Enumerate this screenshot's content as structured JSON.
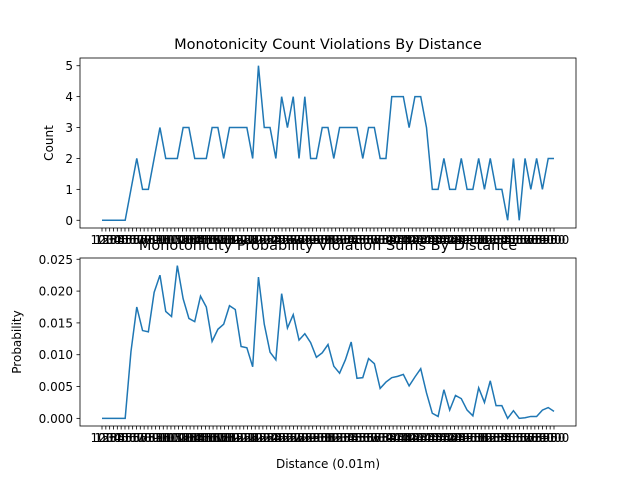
{
  "figure": {
    "xlabel": "Distance (0.01m)"
  },
  "chart_data": [
    {
      "type": "line",
      "title": "Monotonicity Count Violations By Distance",
      "xlabel": "",
      "ylabel": "Count",
      "ylim": [
        -0.25,
        5.25
      ],
      "yticks": [
        0,
        1,
        2,
        3,
        4,
        5
      ],
      "grid": false,
      "line_color": "#1f77b4",
      "x_tick_labels": [
        "100",
        "150",
        "200",
        "250",
        "300",
        "350",
        "400",
        "450",
        "500",
        "550",
        "600",
        "650",
        "700",
        "750",
        "800",
        "850",
        "900",
        "950",
        "1000",
        "1050",
        "1100",
        "1150",
        "1200",
        "1250",
        "1300",
        "1350",
        "1400",
        "1450",
        "1500",
        "1550",
        "1600",
        "1650",
        "1700",
        "1750",
        "1800",
        "1850",
        "1900",
        "1950",
        "2000",
        "2050",
        "2100",
        "2150",
        "2200",
        "2250",
        "2300",
        "2350",
        "2400",
        "2450",
        "2500",
        "2550",
        "2600",
        "2650",
        "2700",
        "2750",
        "2800",
        "2850",
        "2900",
        "2950",
        "3000",
        "3050",
        "3100",
        "3150",
        "3200",
        "3250",
        "3300",
        "3350",
        "3400",
        "3450",
        "3500",
        "3550",
        "3600",
        "3650",
        "3700",
        "3750",
        "3800",
        "3850",
        "3900",
        "3950",
        "4000",
        "4050",
        "4100",
        "4150",
        "4200",
        "4250",
        "4300",
        "4350",
        "4400",
        "4450",
        "4500",
        "4550",
        "4600",
        "4650",
        "4700",
        "4750",
        "4800",
        "4850",
        "4900",
        "4950",
        "5000",
        "5050",
        "5100",
        "5150",
        "5200",
        "5250",
        "5300",
        "5350",
        "5400",
        "5450",
        "5500",
        "5550",
        "5600",
        "5650",
        "5700",
        "5750",
        "5800",
        "5850",
        "5900",
        "5950",
        "6000"
      ],
      "values": [
        0,
        0,
        0,
        0,
        0,
        1,
        2,
        1,
        1,
        2,
        3,
        2,
        2,
        2,
        3,
        3,
        2,
        2,
        2,
        3,
        3,
        2,
        3,
        3,
        3,
        3,
        2,
        5,
        3,
        3,
        2,
        4,
        3,
        4,
        2,
        4,
        2,
        2,
        3,
        3,
        2,
        3,
        3,
        3,
        3,
        2,
        3,
        3,
        2,
        2,
        4,
        4,
        4,
        3,
        4,
        4,
        3,
        1,
        1,
        2,
        1,
        1,
        2,
        1,
        1,
        2,
        1,
        2,
        1,
        1,
        0,
        2,
        0,
        2,
        1,
        2,
        1,
        2,
        2
      ]
    },
    {
      "type": "line",
      "title": "Monotonicity Probability Violation Sums By Distance",
      "xlabel": "Distance (0.01m)",
      "ylabel": "Probability",
      "ylim": [
        -0.0012,
        0.0252
      ],
      "yticks": [
        "0.000",
        "0.005",
        "0.010",
        "0.015",
        "0.020",
        "0.025"
      ],
      "grid": false,
      "line_color": "#1f77b4",
      "x_tick_labels": [
        "100",
        "150",
        "200",
        "250",
        "300",
        "350",
        "400",
        "450",
        "500",
        "550",
        "600",
        "650",
        "700",
        "750",
        "800",
        "850",
        "900",
        "950",
        "1000",
        "1050",
        "1100",
        "1150",
        "1200",
        "1250",
        "1300",
        "1350",
        "1400",
        "1450",
        "1500",
        "1550",
        "1600",
        "1650",
        "1700",
        "1750",
        "1800",
        "1850",
        "1900",
        "1950",
        "2000",
        "2050",
        "2100",
        "2150",
        "2200",
        "2250",
        "2300",
        "2350",
        "2400",
        "2450",
        "2500",
        "2550",
        "2600",
        "2650",
        "2700",
        "2750",
        "2800",
        "2850",
        "2900",
        "2950",
        "3000",
        "3050",
        "3100",
        "3150",
        "3200",
        "3250",
        "3300",
        "3350",
        "3400",
        "3450",
        "3500",
        "3550",
        "3600",
        "3650",
        "3700",
        "3750",
        "3800",
        "3850",
        "3900",
        "3950",
        "4000",
        "4050",
        "4100",
        "4150",
        "4200",
        "4250",
        "4300",
        "4350",
        "4400",
        "4450",
        "4500",
        "4550",
        "4600",
        "4650",
        "4700",
        "4750",
        "4800",
        "4850",
        "4900",
        "4950",
        "5000",
        "5050",
        "5100",
        "5150",
        "5200",
        "5250",
        "5300",
        "5350",
        "5400",
        "5450",
        "5500",
        "5550",
        "5600",
        "5650",
        "5700",
        "5750",
        "5800",
        "5850",
        "5900",
        "5950",
        "6000"
      ],
      "values": [
        0,
        0,
        0,
        0,
        0,
        0.0105,
        0.0175,
        0.0138,
        0.0136,
        0.0198,
        0.0225,
        0.0168,
        0.016,
        0.024,
        0.0188,
        0.0157,
        0.0152,
        0.0192,
        0.0175,
        0.0121,
        0.014,
        0.0148,
        0.0177,
        0.0171,
        0.0113,
        0.0111,
        0.0081,
        0.0222,
        0.0148,
        0.0104,
        0.0092,
        0.0196,
        0.0142,
        0.0163,
        0.0123,
        0.0133,
        0.0119,
        0.0096,
        0.0103,
        0.0116,
        0.0082,
        0.0071,
        0.0092,
        0.012,
        0.0063,
        0.0064,
        0.0094,
        0.0086,
        0.0047,
        0.0057,
        0.0064,
        0.0066,
        0.0069,
        0.0051,
        0.0065,
        0.0078,
        0.004,
        0.0008,
        0.0003,
        0.0045,
        0.0013,
        0.0036,
        0.0031,
        0.0013,
        0.0004,
        0.0048,
        0.0025,
        0.0059,
        0.002,
        0.002,
        0,
        0.0012,
        0,
        0.0001,
        0.0003,
        0.0003,
        0.0013,
        0.0017,
        0.0011
      ]
    }
  ]
}
